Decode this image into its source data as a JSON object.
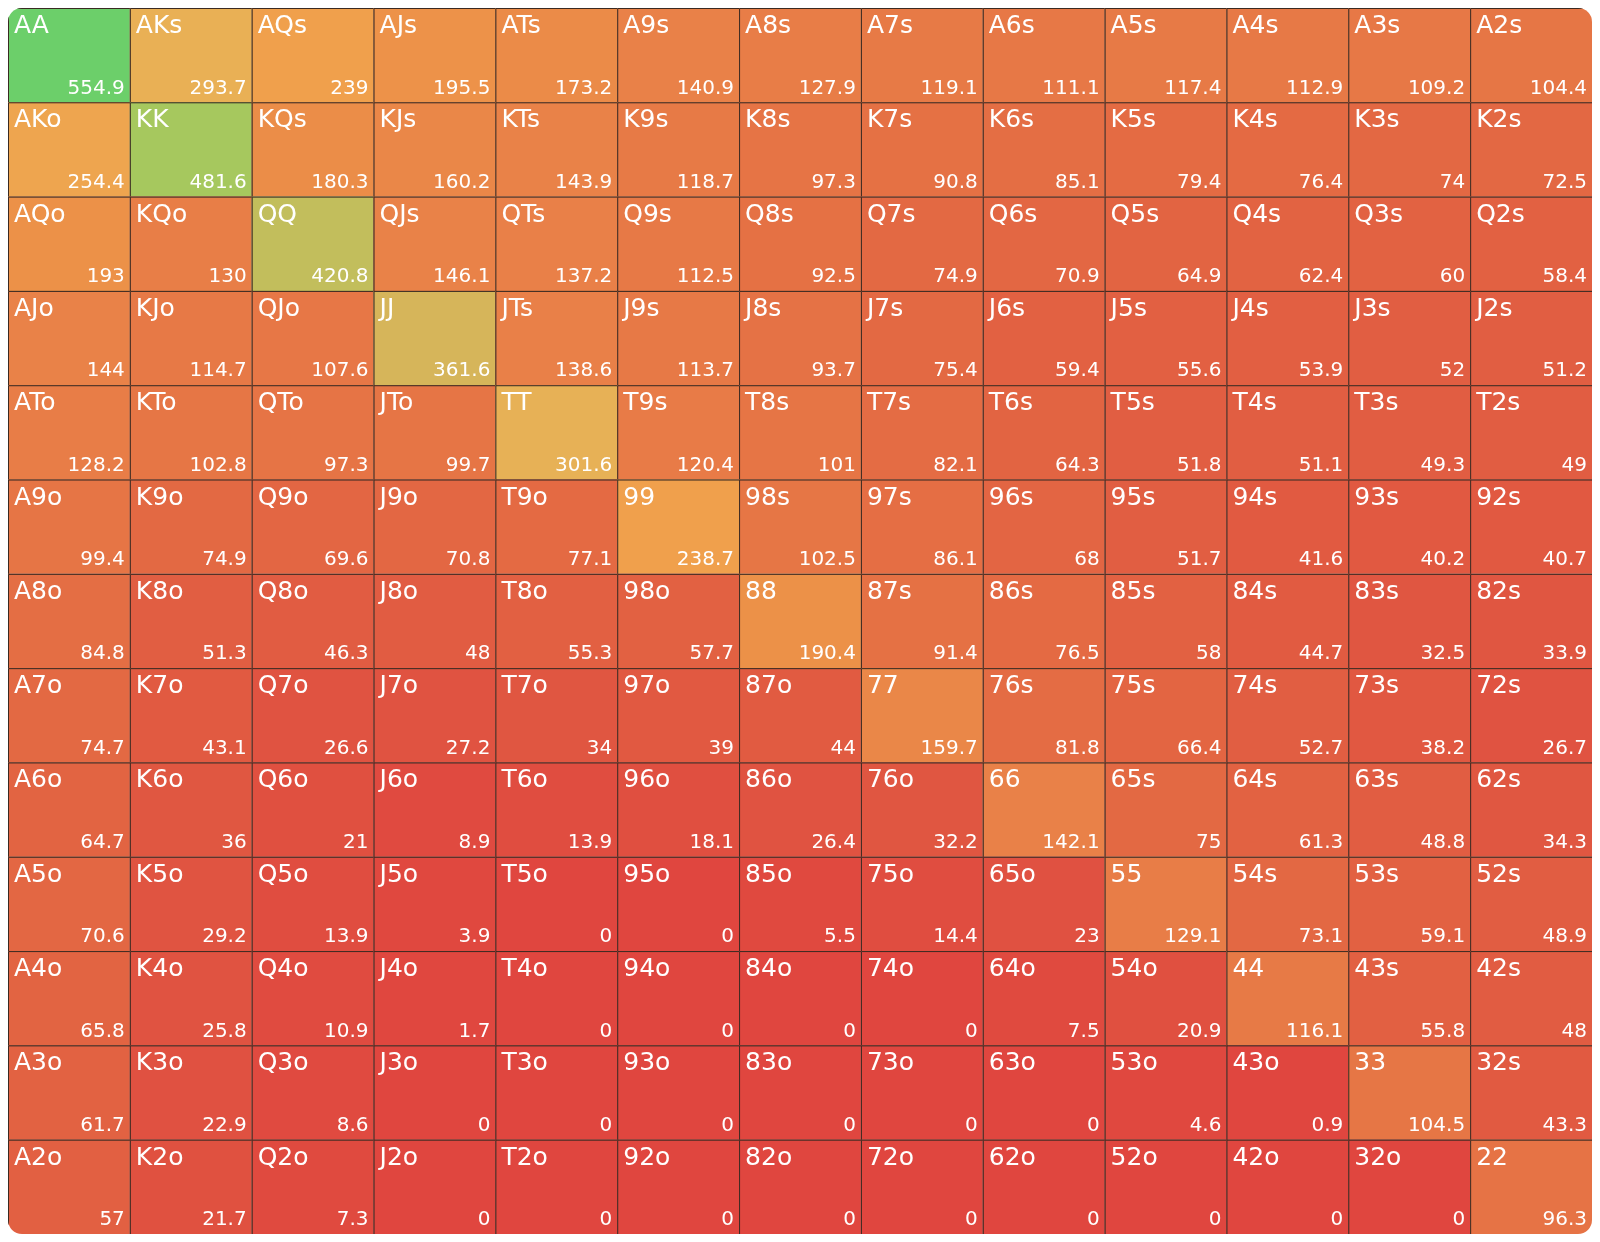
{
  "chart_data": {
    "type": "heatmap",
    "data_labels": true,
    "categories": [
      null,
      null,
      null,
      null,
      null,
      null,
      null,
      null,
      null,
      null,
      null,
      null,
      null
    ],
    "y_categories": [
      null,
      null,
      null,
      null,
      null,
      null,
      null,
      null,
      null,
      null,
      null,
      null,
      null
    ],
    "cells": [
      [
        554.9,
        293.7,
        239,
        195.5,
        173.2,
        140.9,
        127.9,
        119.1,
        111.1,
        117.4,
        112.9,
        109.2,
        104.4
      ],
      [
        254.4,
        481.6,
        180.3,
        160.2,
        143.9,
        118.7,
        97.3,
        90.8,
        85.1,
        79.4,
        76.4,
        74,
        72.5
      ],
      [
        193,
        130,
        420.8,
        146.1,
        137.2,
        112.5,
        92.5,
        74.9,
        70.9,
        64.9,
        62.4,
        60,
        58.4
      ],
      [
        144,
        114.7,
        107.6,
        361.6,
        138.6,
        113.7,
        93.7,
        75.4,
        59.4,
        55.6,
        53.9,
        52,
        51.2
      ],
      [
        128.2,
        102.8,
        97.3,
        99.7,
        301.6,
        120.4,
        101,
        82.1,
        64.3,
        51.8,
        51.1,
        49.3,
        49
      ],
      [
        99.4,
        74.9,
        69.6,
        70.8,
        77.1,
        238.7,
        102.5,
        86.1,
        68,
        51.7,
        41.6,
        40.2,
        40.7
      ],
      [
        84.8,
        51.3,
        46.3,
        48,
        55.3,
        57.7,
        190.4,
        91.4,
        76.5,
        58,
        44.7,
        32.5,
        33.9
      ],
      [
        74.7,
        43.1,
        26.6,
        27.2,
        34,
        39,
        44,
        159.7,
        81.8,
        66.4,
        52.7,
        38.2,
        26.7
      ],
      [
        64.7,
        36,
        21,
        8.9,
        13.9,
        18.1,
        26.4,
        32.2,
        142.1,
        75,
        61.3,
        48.8,
        34.3
      ],
      [
        70.6,
        29.2,
        13.9,
        3.9,
        0,
        0,
        5.5,
        14.4,
        23,
        129.1,
        73.1,
        59.1,
        48.9
      ],
      [
        65.8,
        25.8,
        10.9,
        1.7,
        0,
        0,
        0,
        0,
        7.5,
        20.9,
        116.1,
        55.8,
        48
      ],
      [
        61.7,
        22.9,
        8.6,
        0,
        0,
        0,
        0,
        0,
        0,
        4.6,
        0.9,
        104.5,
        43.3
      ],
      [
        57,
        21.7,
        7.3,
        0,
        0,
        0,
        0,
        0,
        0,
        0,
        0,
        0,
        96.3
      ]
    ],
    "annotations": [
      "AA",
      "AKs",
      "AQs",
      "AJs",
      "ATs",
      "A9s",
      "A8s",
      "A7s",
      "A6s",
      "A5s",
      "A4s",
      "A3s",
      "A2s",
      "AKo",
      "KK",
      "KQs",
      "KJs",
      "KTs",
      "K9s",
      "K8s",
      "K7s",
      "K6s",
      "K5s",
      "K4s",
      "K3s",
      "K2s",
      "AQo",
      "KQo",
      "QQ",
      "QJs",
      "QTs",
      "Q9s",
      "Q8s",
      "Q7s",
      "Q6s",
      "Q5s",
      "Q4s",
      "Q3s",
      "Q2s",
      "AJo",
      "KJo",
      "QJo",
      "JJ",
      "JTs",
      "J9s",
      "J8s",
      "J7s",
      "J6s",
      "J5s",
      "J4s",
      "J3s",
      "J2s",
      "ATo",
      "KTo",
      "QTo",
      "JTo",
      "TT",
      "T9s",
      "T8s",
      "T7s",
      "T6s",
      "T5s",
      "T4s",
      "T3s",
      "T2s",
      "A9o",
      "K9o",
      "Q9o",
      "J9o",
      "T9o",
      "99",
      "98s",
      "97s",
      "96s",
      "95s",
      "94s",
      "93s",
      "92s",
      "A8o",
      "K8o",
      "Q8o",
      "J8o",
      "T8o",
      "98o",
      "88",
      "87s",
      "86s",
      "85s",
      "84s",
      "83s",
      "82s",
      "A7o",
      "K7o",
      "Q7o",
      "J7o",
      "T7o",
      "97o",
      "87o",
      "77",
      "76s",
      "75s",
      "74s",
      "73s",
      "72s",
      "A6o",
      "K6o",
      "Q6o",
      "J6o",
      "T6o",
      "96o",
      "86o",
      "76o",
      "66",
      "65s",
      "64s",
      "63s",
      "62s",
      "A5o",
      "K5o",
      "Q5o",
      "J5o",
      "T5o",
      "95o",
      "85o",
      "75o",
      "65o",
      "55",
      "54s",
      "53s",
      "52s",
      "A4o",
      "K4o",
      "Q4o",
      "J4o",
      "T4o",
      "94o",
      "84o",
      "74o",
      "64o",
      "54o",
      "44",
      "43s",
      "42s",
      "A3o",
      "K3o",
      "Q3o",
      "J3o",
      "T3o",
      "93o",
      "83o",
      "73o",
      "63o",
      "53o",
      "43o",
      "33",
      "32s",
      "A2o",
      "K2o",
      "Q2o",
      "J2o",
      "T2o",
      "92o",
      "82o",
      "72o",
      "62o",
      "52o",
      "42o",
      "32o",
      "22"
    ]
  }
}
